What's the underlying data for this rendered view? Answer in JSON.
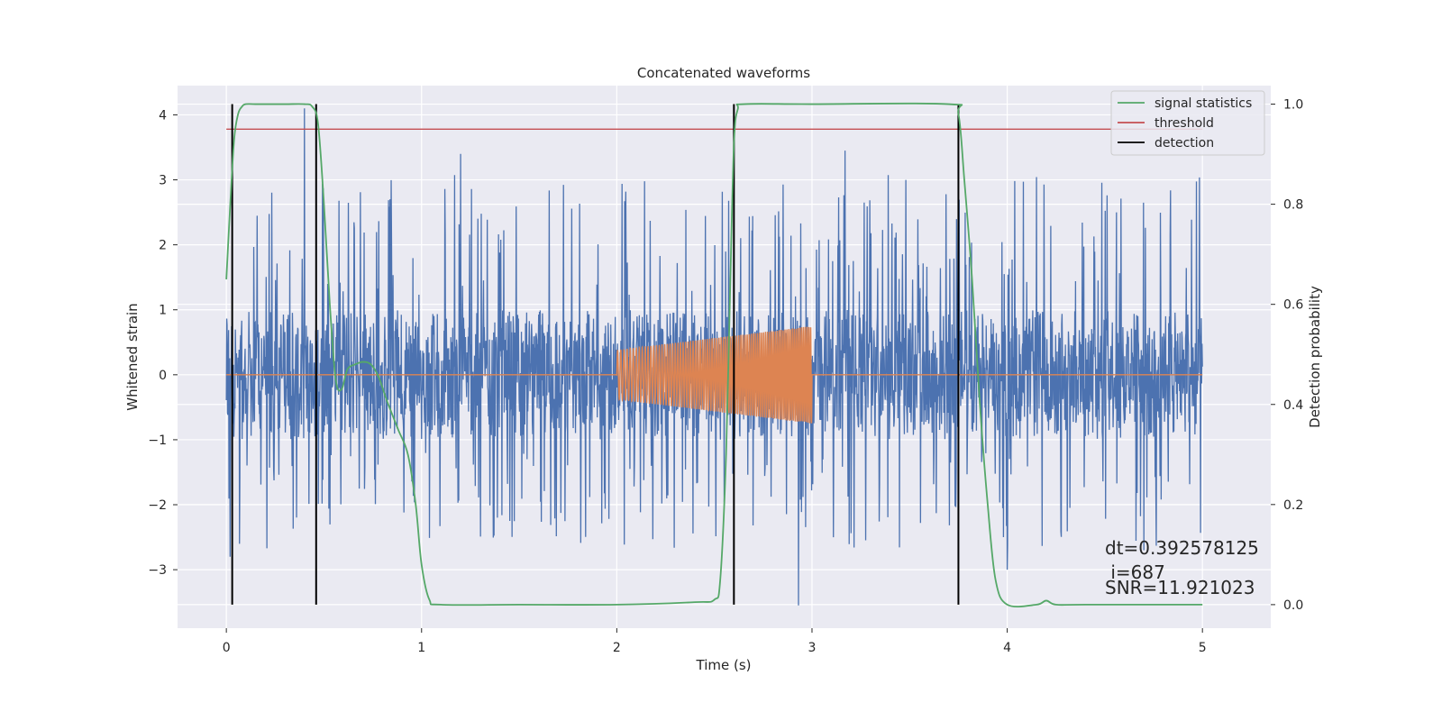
{
  "chart_data": {
    "type": "line",
    "title": "Concatenated waveforms",
    "xlabel": "Time (s)",
    "ylabel": "Whitened strain",
    "y2label": "Detection probability",
    "xlim": [
      -0.25,
      5.35
    ],
    "ylim": [
      -3.9,
      4.45
    ],
    "y2lim": [
      -0.047,
      1.037
    ],
    "xticks": [
      "0",
      "1",
      "2",
      "3",
      "4",
      "5"
    ],
    "yticks": [
      "4",
      "3",
      "2",
      "1",
      "0",
      "−1",
      "−2",
      "−3"
    ],
    "y2ticks": [
      "1.0",
      "0.8",
      "0.6",
      "0.4",
      "0.2",
      "0.0"
    ],
    "grid": true,
    "legend_position": "top-right",
    "series": [
      {
        "kind": "noise",
        "axis": "left",
        "color": "#4c72b0",
        "x_range": [
          0,
          5
        ],
        "core_amplitude": 1.0,
        "spike_range": [
          -3.55,
          4.1
        ],
        "notable_spikes": [
          [
            0.02,
            -2.8
          ],
          [
            0.4,
            4.1
          ],
          [
            1.2,
            3.4
          ],
          [
            2.93,
            -3.55
          ],
          [
            3.17,
            3.45
          ],
          [
            4.0,
            -3.0
          ],
          [
            4.7,
            -2.7
          ]
        ]
      },
      {
        "kind": "chirp",
        "axis": "left",
        "color": "#dd8452",
        "x_range": [
          0,
          5
        ],
        "chirp_start": 2.0,
        "chirp_end": 3.0,
        "amp_start": 0.38,
        "amp_end": 0.75,
        "freq_start": 60,
        "freq_end": 110
      },
      {
        "name": "signal statistics",
        "axis": "right",
        "color": "#55a868",
        "x": [
          0.0,
          0.02,
          0.04,
          0.06,
          0.08,
          0.1,
          0.15,
          0.3,
          0.4,
          0.44,
          0.47,
          0.5,
          0.53,
          0.56,
          0.59,
          0.62,
          0.66,
          0.7,
          0.74,
          0.78,
          0.82,
          0.88,
          0.93,
          0.97,
          1.0,
          1.04,
          1.1,
          1.5,
          2.0,
          2.4,
          2.5,
          2.53,
          2.56,
          2.58,
          2.6,
          2.62,
          2.65,
          3.0,
          3.7,
          3.75,
          3.78,
          3.82,
          3.86,
          3.9,
          3.94,
          4.0,
          4.15,
          4.2,
          4.25,
          4.4,
          5.0
        ],
        "y": [
          0.65,
          0.8,
          0.93,
          0.98,
          0.995,
          1.0,
          1.0,
          1.0,
          1.0,
          0.995,
          0.96,
          0.8,
          0.6,
          0.45,
          0.43,
          0.47,
          0.48,
          0.485,
          0.48,
          0.455,
          0.41,
          0.35,
          0.3,
          0.2,
          0.08,
          0.01,
          0.0,
          0.0,
          0.0,
          0.005,
          0.01,
          0.05,
          0.3,
          0.62,
          0.92,
          0.99,
          1.0,
          1.0,
          1.0,
          0.98,
          0.85,
          0.65,
          0.4,
          0.2,
          0.05,
          0.0,
          0.0,
          0.008,
          0.0,
          0.0,
          0.0
        ]
      },
      {
        "name": "threshold",
        "axis": "right",
        "color": "#c44e52",
        "x": [
          0,
          5
        ],
        "y": [
          0.95,
          0.95
        ]
      },
      {
        "name": "detection",
        "axis": "right",
        "color": "#000000",
        "vlines_x": [
          0.03,
          0.46,
          2.6,
          3.75
        ],
        "vline_y": [
          0.0,
          1.0
        ]
      }
    ],
    "annotations": [
      "dt=0.392578125",
      " i=687",
      "SNR=11.921023"
    ]
  }
}
